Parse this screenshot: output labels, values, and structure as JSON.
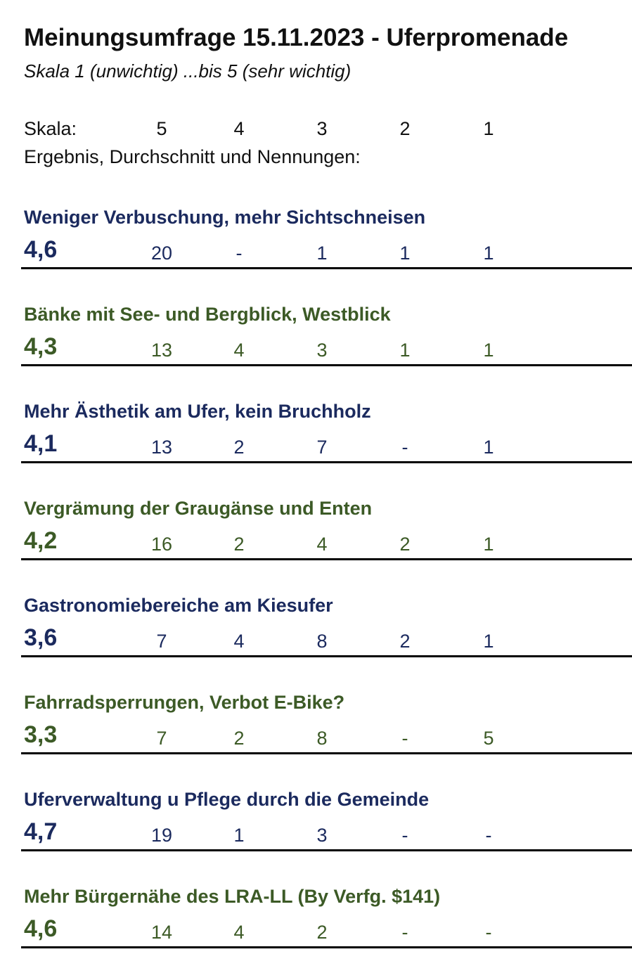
{
  "title": "Meinungsumfrage 15.11.2023 - Uferpromenade",
  "subtitle": "Skala 1 (unwichtig) ...bis 5 (sehr wichtig)",
  "scale": {
    "label": "Skala:",
    "values": [
      "5",
      "4",
      "3",
      "2",
      "1"
    ]
  },
  "result_label": "Ergebnis, Durchschnitt und Nennungen:",
  "colors": {
    "navy": "#1b2a5e",
    "green": "#3c5a26"
  },
  "items": [
    {
      "label": "Weniger Verbuschung, mehr Sichtschneisen",
      "average": "4,6",
      "counts": [
        "20",
        "-",
        "1",
        "1",
        "1"
      ],
      "color": "navy"
    },
    {
      "label": "Bänke mit See- und Bergblick, Westblick",
      "average": "4,3",
      "counts": [
        "13",
        "4",
        "3",
        "1",
        "1"
      ],
      "color": "green"
    },
    {
      "label": "Mehr Ästhetik am Ufer, kein Bruchholz",
      "average": "4,1",
      "counts": [
        "13",
        "2",
        "7",
        "-",
        "1"
      ],
      "color": "navy"
    },
    {
      "label": "Vergrämung der Graugänse und Enten",
      "average": "4,2",
      "counts": [
        "16",
        "2",
        "4",
        "2",
        "1"
      ],
      "color": "green"
    },
    {
      "label": "Gastronomiebereiche am Kiesufer",
      "average": "3,6",
      "counts": [
        "7",
        "4",
        "8",
        "2",
        "1"
      ],
      "color": "navy"
    },
    {
      "label": "Fahrradsperrungen, Verbot E-Bike?",
      "average": "3,3",
      "counts": [
        "7",
        "2",
        "8",
        "-",
        "5"
      ],
      "color": "green"
    },
    {
      "label": "Uferverwaltung u Pflege durch die Gemeinde",
      "average": "4,7",
      "counts": [
        "19",
        "1",
        "3",
        "-",
        "-"
      ],
      "color": "navy"
    },
    {
      "label": "Mehr Bürgernähe des LRA-LL (By Verfg. $141)",
      "average": "4,6",
      "counts": [
        "14",
        "4",
        "2",
        "-",
        "-"
      ],
      "color": "green"
    }
  ]
}
